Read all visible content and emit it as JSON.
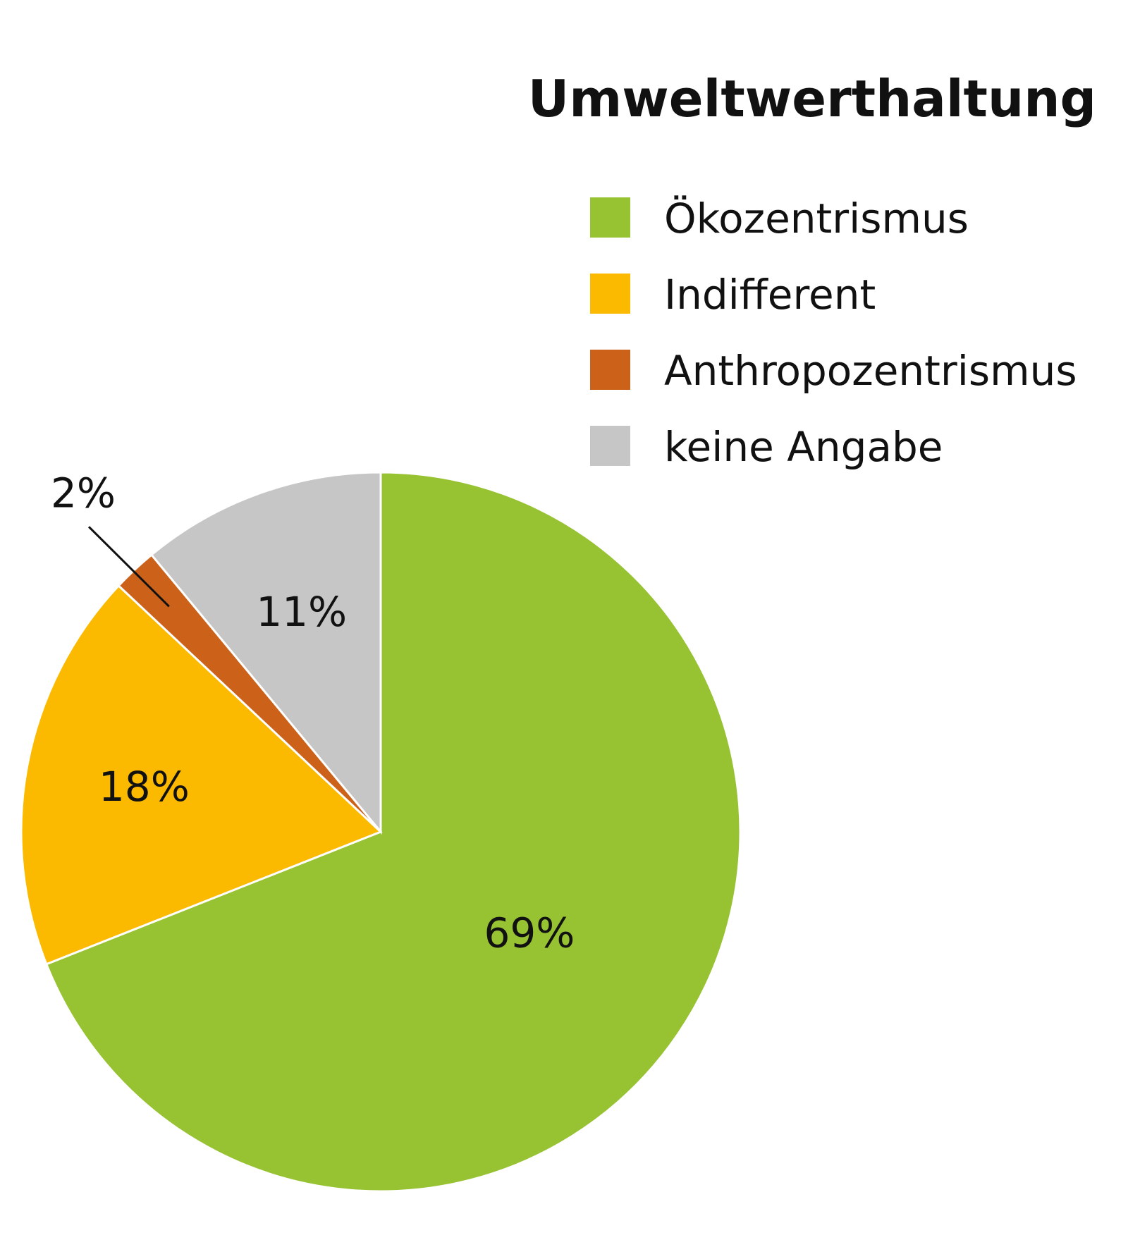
{
  "chart_data": {
    "type": "pie",
    "title": "Umweltwerthaltung",
    "legend_position": "top-right",
    "start_angle": "12 o'clock",
    "direction": "clockwise",
    "categories": [
      "Ökozentrismus",
      "Indifferent",
      "Anthropozentrismus",
      "keine Angabe"
    ],
    "values": [
      69,
      18,
      2,
      11
    ],
    "value_labels": [
      "69%",
      "18%",
      "2%",
      "11%"
    ],
    "colors": [
      "#97C232",
      "#FBB900",
      "#CC611A",
      "#C6C6C6"
    ]
  }
}
